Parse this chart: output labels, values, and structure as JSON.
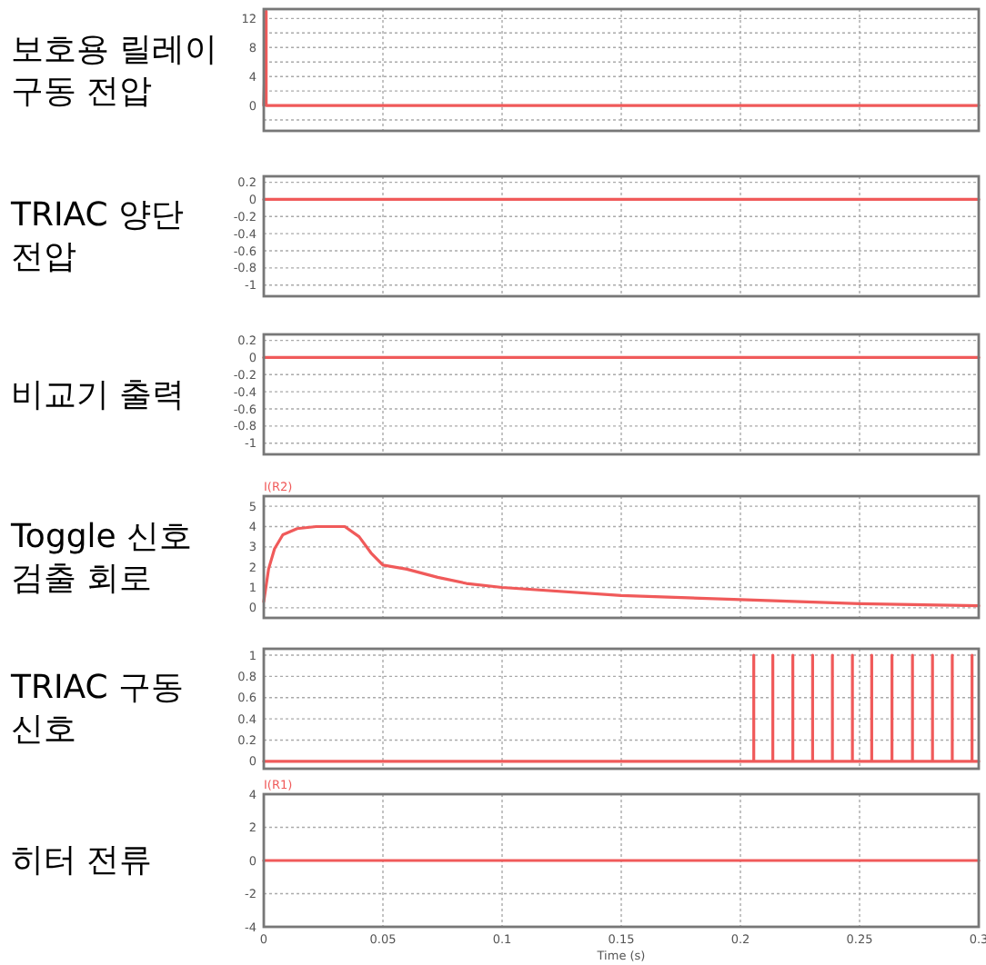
{
  "chart_data": [
    {
      "type": "line",
      "title": "보호용 릴레이 구동 전압",
      "xlim": [
        0,
        0.3
      ],
      "ylim": [
        -3.5,
        13.3
      ],
      "xticks": [
        0,
        0.05,
        0.1,
        0.15,
        0.2,
        0.25,
        0.3
      ],
      "yticks": [
        {
          "value": -2,
          "label": null
        },
        0,
        {
          "value": 2,
          "label": null
        },
        4,
        {
          "value": 6,
          "label": null
        },
        8,
        {
          "value": 10,
          "label": null
        },
        12
      ],
      "tick_labels": "y",
      "grid": true,
      "series": [
        {
          "color": "#f05a5a",
          "x": [
            0,
            0.001,
            0.001,
            0.3
          ],
          "values": [
            0,
            13,
            0,
            0
          ]
        }
      ]
    },
    {
      "type": "line",
      "title": "TRIAC 양단 전압",
      "xlim": [
        0,
        0.3
      ],
      "ylim": [
        -1.13,
        0.27
      ],
      "xticks": [
        0,
        0.05,
        0.1,
        0.15,
        0.2,
        0.25,
        0.3
      ],
      "yticks": [
        -1,
        -0.8,
        -0.6,
        -0.4,
        -0.2,
        0,
        0.2
      ],
      "tick_labels": "y",
      "grid": true,
      "series": [
        {
          "color": "#f05a5a",
          "x": [
            0,
            0.3
          ],
          "values": [
            0,
            0
          ]
        }
      ]
    },
    {
      "type": "line",
      "title": "비교기 출력",
      "xlim": [
        0,
        0.3
      ],
      "ylim": [
        -1.13,
        0.27
      ],
      "xticks": [
        0,
        0.05,
        0.1,
        0.15,
        0.2,
        0.25,
        0.3
      ],
      "yticks": [
        -1,
        -0.8,
        -0.6,
        -0.4,
        -0.2,
        0,
        0.2
      ],
      "tick_labels": "y",
      "grid": true,
      "series": [
        {
          "color": "#f05a5a",
          "x": [
            0,
            0.3
          ],
          "values": [
            0,
            0
          ]
        }
      ]
    },
    {
      "type": "line",
      "title": "Toggle 신호 검출 회로",
      "xlim": [
        0,
        0.3
      ],
      "ylim": [
        -0.5,
        5.5
      ],
      "xticks": [
        0,
        0.05,
        0.1,
        0.15,
        0.2,
        0.25,
        0.3
      ],
      "yticks": [
        0,
        1,
        2,
        3,
        4,
        5
      ],
      "tick_labels": "y",
      "grid": true,
      "legend": "top left",
      "series": [
        {
          "name": "I(R2)",
          "color": "#f05a5a",
          "x": [
            0,
            0.002,
            0.0045,
            0.008,
            0.014,
            0.022,
            0.034,
            0.04,
            0.045,
            0.05,
            0.06,
            0.073,
            0.085,
            0.1,
            0.15,
            0.2,
            0.25,
            0.3
          ],
          "values": [
            0.3,
            1.9,
            2.9,
            3.6,
            3.9,
            4,
            4,
            3.5,
            2.7,
            2.1,
            1.9,
            1.5,
            1.2,
            1,
            0.6,
            0.4,
            0.2,
            0.1
          ]
        }
      ]
    },
    {
      "type": "line",
      "title": "TRIAC 구동 신호",
      "xlim": [
        0,
        0.3
      ],
      "ylim": [
        -0.07,
        1.06
      ],
      "xticks": [
        0,
        0.05,
        0.1,
        0.15,
        0.2,
        0.25,
        0.3
      ],
      "yticks": [
        0,
        0.2,
        0.4,
        0.6,
        0.8,
        1
      ],
      "tick_labels": "y",
      "grid": true,
      "series": [
        {
          "color": "#f05a5a",
          "x": [
            0,
            0.2056,
            0.2056,
            0.2056,
            0.2136,
            0.2136,
            0.2136,
            0.222,
            0.222,
            0.222,
            0.2303,
            0.2303,
            0.2303,
            0.2386,
            0.2386,
            0.2386,
            0.247,
            0.247,
            0.247,
            0.2551,
            0.2551,
            0.2551,
            0.2636,
            0.2636,
            0.2636,
            0.2722,
            0.2722,
            0.2722,
            0.2806,
            0.2806,
            0.2806,
            0.2889,
            0.2889,
            0.2889,
            0.2972,
            0.2972,
            0.2972,
            0.3
          ],
          "values": [
            0,
            0,
            1,
            0,
            0,
            1,
            0,
            0,
            1,
            0,
            0,
            1,
            0,
            0,
            1,
            0,
            0,
            1,
            0,
            0,
            1,
            0,
            0,
            1,
            0,
            0,
            1,
            0,
            0,
            1,
            0,
            0,
            1,
            0,
            0,
            1,
            0,
            0
          ]
        }
      ]
    },
    {
      "type": "line",
      "title": "히터 전류",
      "xlabel": "Time (s)",
      "xlim": [
        0,
        0.3
      ],
      "ylim": [
        -4,
        4
      ],
      "xticks": [
        0,
        0.05,
        0.1,
        0.15,
        0.2,
        0.25,
        0.3
      ],
      "yticks": [
        -4,
        -2,
        0,
        2,
        4
      ],
      "grid": true,
      "legend": "top left",
      "series": [
        {
          "name": "I(R1)",
          "color": "#f05a5a",
          "x": [
            0,
            0.3
          ],
          "values": [
            0,
            0
          ]
        }
      ]
    }
  ]
}
